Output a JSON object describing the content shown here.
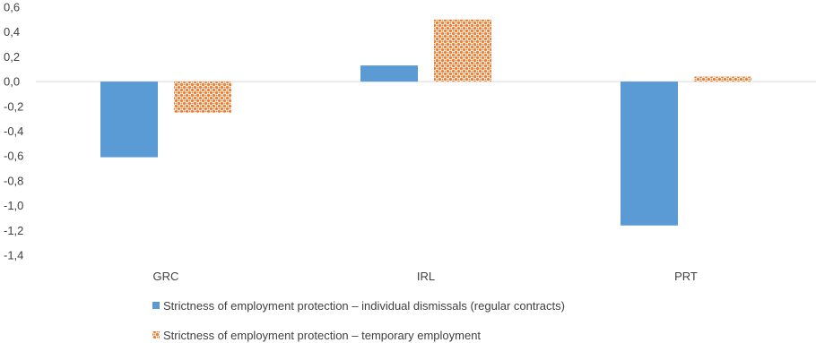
{
  "chart_data": {
    "type": "bar",
    "categories": [
      "GRC",
      "IRL",
      "PRT"
    ],
    "series": [
      {
        "name": "Strictness of employment protection – individual dismissals (regular contracts)",
        "values": [
          -0.61,
          0.13,
          -1.16
        ],
        "color": "#5b9bd5",
        "pattern": "solid"
      },
      {
        "name": "Strictness of employment protection – temporary employment",
        "values": [
          -0.25,
          0.5,
          0.04
        ],
        "color": "#ed7d31",
        "pattern": "dotted-check"
      }
    ],
    "yticks": [
      "0,6",
      "0,4",
      "0,2",
      "0,0",
      "-0,2",
      "-0,4",
      "-0,6",
      "-0,8",
      "-1,0",
      "-1,2",
      "-1,4"
    ],
    "ylim": [
      -1.4,
      0.6
    ],
    "grid": false,
    "zero_line_color": "#d9d9d9",
    "legend_position": "bottom"
  }
}
